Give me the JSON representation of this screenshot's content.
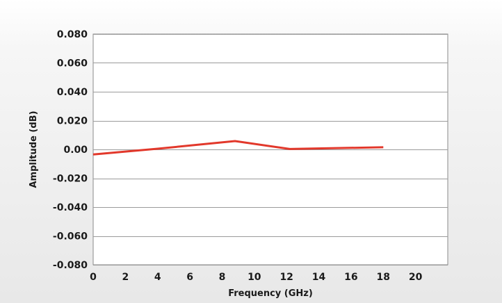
{
  "chart_data": {
    "type": "line",
    "title": "",
    "xlabel": "Frequency (GHz)",
    "ylabel": "Amplitude (dB)",
    "xlim": [
      0,
      22
    ],
    "ylim": [
      -0.08,
      0.08
    ],
    "x_ticks": [
      0,
      2,
      4,
      6,
      8,
      10,
      12,
      14,
      16,
      18,
      20
    ],
    "x_tick_labels": [
      "0",
      "2",
      "4",
      "6",
      "8",
      "10",
      "12",
      "14",
      "16",
      "18",
      "20"
    ],
    "y_ticks": [
      -0.08,
      -0.06,
      -0.04,
      -0.02,
      0,
      0.02,
      0.04,
      0.06,
      0.08
    ],
    "y_tick_labels": [
      "-0.080",
      "-0.060",
      "-0.040",
      "-0.020",
      "0.00",
      "0.020",
      "0.040",
      "0.060",
      "0.080"
    ],
    "grid": true,
    "legend": "none",
    "series": [
      {
        "color": "#e2382b",
        "x": [
          0,
          4,
          8.8,
          12.2,
          18
        ],
        "y": [
          -0.0035,
          0.0005,
          0.0058,
          0.0003,
          0.0015
        ]
      }
    ]
  }
}
